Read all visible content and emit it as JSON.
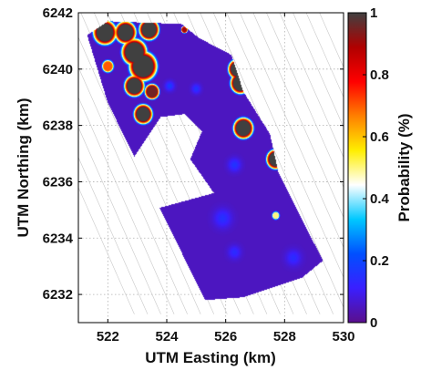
{
  "chart_data": {
    "type": "heatmap",
    "title": "",
    "xlabel": "UTM Easting (km)",
    "ylabel": "UTM Northing (km)",
    "xlim": [
      521,
      530
    ],
    "ylim": [
      6231,
      6242
    ],
    "x_ticks": [
      522,
      524,
      526,
      528,
      530
    ],
    "y_ticks": [
      6232,
      6234,
      6236,
      6238,
      6240,
      6242
    ],
    "grid": true,
    "colorbar": {
      "label": "Probability (%)",
      "range": [
        0,
        1
      ],
      "ticks": [
        0,
        0.2,
        0.4,
        0.6,
        0.8,
        1
      ],
      "colormap": [
        "#5a0f8c",
        "#3a1fff",
        "#0050ff",
        "#00c8ff",
        "#ffffff",
        "#ffee00",
        "#ff8000",
        "#ff0000",
        "#b00000",
        "#404040"
      ]
    },
    "survey_region": [
      [
        521.3,
        6241.2
      ],
      [
        522.0,
        6241.7
      ],
      [
        524.5,
        6241.6
      ],
      [
        525.1,
        6241.1
      ],
      [
        526.2,
        6240.5
      ],
      [
        526.6,
        6239.2
      ],
      [
        527.5,
        6237.7
      ],
      [
        527.8,
        6236.3
      ],
      [
        529.3,
        6233.2
      ],
      [
        528.6,
        6232.6
      ],
      [
        526.6,
        6231.9
      ],
      [
        525.3,
        6231.8
      ],
      [
        522.0,
        6238.8
      ]
    ],
    "background_value": 0.05,
    "hotspots": [
      {
        "x": 521.9,
        "y": 6241.3,
        "r": 0.35,
        "p": 1.0
      },
      {
        "x": 522.6,
        "y": 6241.3,
        "r": 0.32,
        "p": 1.0
      },
      {
        "x": 523.4,
        "y": 6241.4,
        "r": 0.3,
        "p": 1.0
      },
      {
        "x": 522.9,
        "y": 6240.6,
        "r": 0.38,
        "p": 1.0
      },
      {
        "x": 523.2,
        "y": 6240.1,
        "r": 0.42,
        "p": 1.0
      },
      {
        "x": 522.9,
        "y": 6239.4,
        "r": 0.3,
        "p": 1.0
      },
      {
        "x": 523.5,
        "y": 6239.2,
        "r": 0.22,
        "p": 0.95
      },
      {
        "x": 523.2,
        "y": 6238.4,
        "r": 0.28,
        "p": 1.0
      },
      {
        "x": 522.0,
        "y": 6240.1,
        "r": 0.18,
        "p": 0.7
      },
      {
        "x": 526.4,
        "y": 6240.0,
        "r": 0.28,
        "p": 1.0
      },
      {
        "x": 526.5,
        "y": 6239.5,
        "r": 0.3,
        "p": 1.0
      },
      {
        "x": 526.6,
        "y": 6237.9,
        "r": 0.3,
        "p": 1.0
      },
      {
        "x": 527.7,
        "y": 6236.8,
        "r": 0.28,
        "p": 1.0
      },
      {
        "x": 527.7,
        "y": 6234.8,
        "r": 0.12,
        "p": 0.5
      },
      {
        "x": 524.6,
        "y": 6241.4,
        "r": 0.1,
        "p": 0.9
      }
    ],
    "lowspots": [
      {
        "x": 524.1,
        "y": 6239.4,
        "r": 0.18,
        "p": 0.18
      },
      {
        "x": 525.0,
        "y": 6239.3,
        "r": 0.18,
        "p": 0.16
      },
      {
        "x": 526.3,
        "y": 6236.6,
        "r": 0.25,
        "p": 0.16
      },
      {
        "x": 525.9,
        "y": 6234.7,
        "r": 0.35,
        "p": 0.15
      },
      {
        "x": 526.3,
        "y": 6233.5,
        "r": 0.25,
        "p": 0.14
      },
      {
        "x": 528.3,
        "y": 6233.3,
        "r": 0.3,
        "p": 0.14
      }
    ],
    "gap_region": [
      [
        523.8,
        6238.3
      ],
      [
        524.6,
        6238.4
      ],
      [
        525.2,
        6237.8
      ],
      [
        524.8,
        6236.8
      ],
      [
        525.6,
        6235.6
      ],
      [
        523.5,
        6235.0
      ],
      [
        522.9,
        6236.9
      ]
    ]
  }
}
